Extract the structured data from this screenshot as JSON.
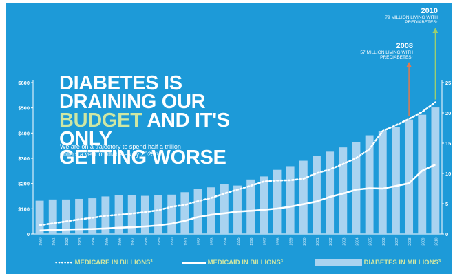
{
  "title": {
    "line1": "DIABETES IS DRAINING OUR",
    "highlight": "BUDGET",
    "line2_rest": " AND IT'S ONLY",
    "line3": "GETTING WORSE"
  },
  "subtitle": "We are on a trajectory to spend half a trillion dollars a year on diabetes by 2025.⁷",
  "annotations": [
    {
      "year": "2010",
      "text": "79 MILLION LIVING WITH PREDIABETES⁷"
    },
    {
      "year": "2008",
      "text": "57 MILLION LIVING WITH PREDIABETES⁷"
    }
  ],
  "legend": {
    "medicare": "MEDICARE IN BILLIONS³",
    "medicaid": "MEDICAID IN BILLIONS³",
    "diabetes": "DIABETES IN MILLIONS³"
  },
  "colors": {
    "background": "#1d9ad8",
    "bars": "#a9d3f0",
    "lines": "#ffffff",
    "legend_text": "#cfe7a3",
    "highlight": "#cfe7a3",
    "arrow_2008": "#e07a4f",
    "arrow_2010": "#9ccf6e"
  },
  "chart_data": {
    "type": "bar",
    "title": "DIABETES IS DRAINING OUR BUDGET AND IT'S ONLY GETTING WORSE",
    "x": [
      "1980",
      "1981",
      "1982",
      "1983",
      "1984",
      "1985",
      "1986",
      "1987",
      "1988",
      "1989",
      "1990",
      "1991",
      "1992",
      "1993",
      "1994",
      "1995",
      "1996",
      "1997",
      "1998",
      "1999",
      "2000",
      "2001",
      "2002",
      "2003",
      "2004",
      "2005",
      "2006",
      "2007",
      "2008",
      "2009",
      "2010"
    ],
    "y_left": {
      "ticks": [
        "0",
        "$100",
        "$200",
        "$300",
        "$400",
        "$500",
        "$600"
      ],
      "range": [
        0,
        600
      ]
    },
    "y_right": {
      "ticks": [
        "0",
        "5",
        "10",
        "15",
        "20",
        "25"
      ],
      "range": [
        0,
        25
      ]
    },
    "series": [
      {
        "name": "DIABETES IN MILLIONS³",
        "type": "bar",
        "axis": "right",
        "values": [
          5.5,
          5.7,
          5.7,
          5.8,
          5.9,
          6.2,
          6.4,
          6.4,
          6.3,
          6.4,
          6.5,
          6.9,
          7.5,
          7.7,
          8.2,
          8.0,
          9.0,
          9.5,
          10.6,
          11.2,
          12.1,
          12.9,
          13.6,
          14.3,
          15.2,
          16.3,
          17.0,
          17.7,
          18.9,
          19.7,
          20.9
        ]
      },
      {
        "name": "MEDICARE IN BILLIONS³",
        "type": "line",
        "style": "dotted",
        "axis": "left",
        "values": [
          35,
          42,
          50,
          58,
          64,
          72,
          76,
          81,
          87,
          94,
          108,
          115,
          130,
          143,
          160,
          176,
          191,
          208,
          212,
          213,
          219,
          241,
          256,
          277,
          301,
          336,
          408,
          431,
          456,
          484,
          522
        ]
      },
      {
        "name": "MEDICAID IN BILLIONS³",
        "type": "line",
        "style": "solid",
        "axis": "left",
        "values": [
          14,
          16,
          18,
          19,
          20,
          22,
          25,
          27,
          30,
          34,
          41,
          52,
          67,
          76,
          82,
          89,
          92,
          96,
          101,
          108,
          118,
          129,
          147,
          160,
          176,
          181,
          180,
          190,
          201,
          251,
          275
        ]
      }
    ],
    "annotations": [
      {
        "x": "2008",
        "text": "57 MILLION LIVING WITH PREDIABETES⁷"
      },
      {
        "x": "2010",
        "text": "79 MILLION LIVING WITH PREDIABETES⁷"
      }
    ],
    "legend_position": "bottom"
  }
}
